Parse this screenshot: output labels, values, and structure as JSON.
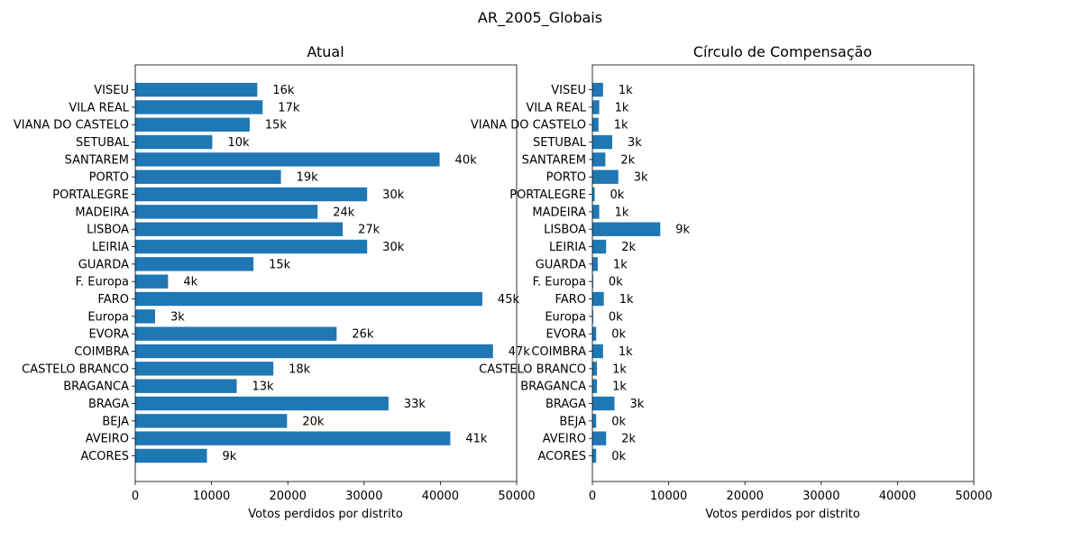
{
  "figure_title": "AR_2005_Globais",
  "chart_data": [
    {
      "type": "bar",
      "orientation": "horizontal",
      "title": "Atual",
      "xlabel": "Votos perdidos por distrito",
      "ylabel": "",
      "xlim": [
        0,
        50000
      ],
      "xticks": [
        "0",
        "10000",
        "20000",
        "30000",
        "40000",
        "50000"
      ],
      "bar_color": "#1f77b4",
      "categories": [
        "ACORES",
        "AVEIRO",
        "BEJA",
        "BRAGA",
        "BRAGANCA",
        "CASTELO BRANCO",
        "COIMBRA",
        "EVORA",
        "Europa",
        "FARO",
        "F. Europa",
        "GUARDA",
        "LEIRIA",
        "LISBOA",
        "MADEIRA",
        "PORTALEGRE",
        "PORTO",
        "SANTAREM",
        "SETUBAL",
        "VIANA DO CASTELO",
        "VILA REAL",
        "VISEU"
      ],
      "values": [
        9400,
        41300,
        19900,
        33200,
        13300,
        18100,
        46900,
        26400,
        2600,
        45500,
        4300,
        15500,
        30400,
        27200,
        23900,
        30400,
        19100,
        39900,
        10100,
        15000,
        16700,
        16000
      ],
      "labels": [
        "9k",
        "41k",
        "20k",
        "33k",
        "13k",
        "18k",
        "47k",
        "26k",
        "3k",
        "45k",
        "4k",
        "15k",
        "30k",
        "27k",
        "24k",
        "30k",
        "19k",
        "40k",
        "10k",
        "15k",
        "17k",
        "16k"
      ]
    },
    {
      "type": "bar",
      "orientation": "horizontal",
      "title": "Círculo de Compensação",
      "xlabel": "Votos perdidos por distrito",
      "ylabel": "",
      "xlim": [
        0,
        50000
      ],
      "xticks": [
        "0",
        "10000",
        "20000",
        "30000",
        "40000",
        "50000"
      ],
      "bar_color": "#1f77b4",
      "categories": [
        "ACORES",
        "AVEIRO",
        "BEJA",
        "BRAGA",
        "BRAGANCA",
        "CASTELO BRANCO",
        "COIMBRA",
        "EVORA",
        "Europa",
        "FARO",
        "F. Europa",
        "GUARDA",
        "LEIRIA",
        "LISBOA",
        "MADEIRA",
        "PORTALEGRE",
        "PORTO",
        "SANTAREM",
        "SETUBAL",
        "VIANA DO CASTELO",
        "VILA REAL",
        "VISEU"
      ],
      "values": [
        500,
        1800,
        500,
        2900,
        600,
        600,
        1400,
        500,
        100,
        1500,
        100,
        700,
        1800,
        8900,
        900,
        300,
        3400,
        1700,
        2600,
        800,
        900,
        1400
      ],
      "labels": [
        "0k",
        "2k",
        "0k",
        "3k",
        "1k",
        "1k",
        "1k",
        "0k",
        "0k",
        "1k",
        "0k",
        "1k",
        "2k",
        "9k",
        "1k",
        "0k",
        "3k",
        "2k",
        "3k",
        "1k",
        "1k",
        "1k"
      ]
    }
  ]
}
